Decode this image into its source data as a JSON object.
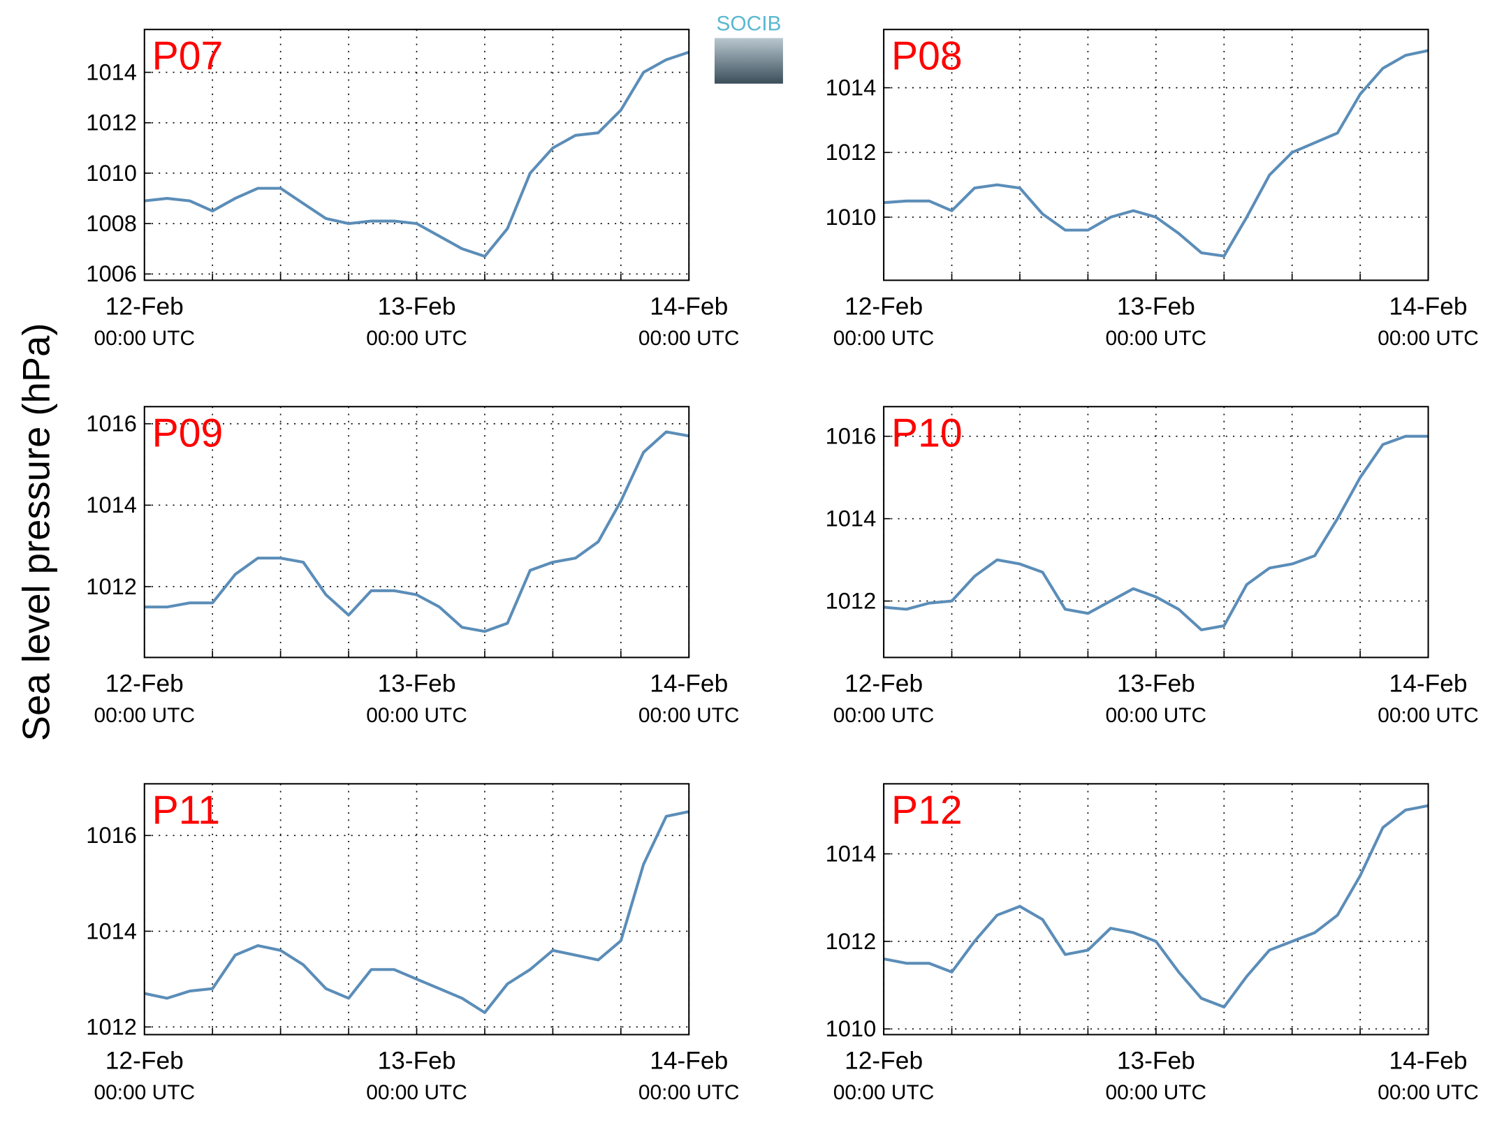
{
  "ylabel": "Sea level pressure (hPa)",
  "logo": "SOCIB",
  "chart_data": [
    {
      "type": "line",
      "title": "P07",
      "color": "#5b8db8",
      "grid": true,
      "x": [
        "12-Feb 00:00",
        "12-Feb 02:00",
        "12-Feb 04:00",
        "12-Feb 06:00",
        "12-Feb 08:00",
        "12-Feb 10:00",
        "12-Feb 12:00",
        "12-Feb 14:00",
        "12-Feb 16:00",
        "12-Feb 18:00",
        "12-Feb 20:00",
        "12-Feb 22:00",
        "13-Feb 00:00",
        "13-Feb 02:00",
        "13-Feb 04:00",
        "13-Feb 06:00",
        "13-Feb 08:00",
        "13-Feb 10:00",
        "13-Feb 12:00",
        "13-Feb 14:00",
        "13-Feb 16:00",
        "13-Feb 18:00",
        "13-Feb 20:00",
        "13-Feb 22:00",
        "14-Feb 00:00"
      ],
      "values": [
        1008.9,
        1009.0,
        1008.9,
        1008.5,
        1009.0,
        1009.4,
        1009.4,
        1008.8,
        1008.2,
        1008.0,
        1008.1,
        1008.1,
        1008.0,
        1007.5,
        1007.0,
        1006.7,
        1007.8,
        1010.0,
        1011.0,
        1011.5,
        1011.6,
        1012.5,
        1014.0,
        1014.5,
        1014.8
      ],
      "xlim": [
        "12-Feb 00:00",
        "14-Feb 00:00"
      ],
      "xticks": [
        {
          "value": "12-Feb 00:00",
          "label": "12-Feb",
          "sublabel": "00:00 UTC"
        },
        "12-Feb 06:00",
        "12-Feb 12:00",
        "12-Feb 18:00",
        {
          "value": "13-Feb 00:00",
          "label": "13-Feb",
          "sublabel": "00:00 UTC"
        },
        "13-Feb 06:00",
        "13-Feb 12:00",
        "13-Feb 18:00",
        {
          "value": "14-Feb 00:00",
          "label": "14-Feb",
          "sublabel": "00:00 UTC"
        }
      ],
      "ylim": [
        1005.75,
        1015.7
      ],
      "yticks": [
        1006,
        1008,
        1010,
        1012,
        1014
      ]
    },
    {
      "type": "line",
      "title": "P08",
      "color": "#5b8db8",
      "grid": true,
      "x": [
        "12-Feb 00:00",
        "12-Feb 02:00",
        "12-Feb 04:00",
        "12-Feb 06:00",
        "12-Feb 08:00",
        "12-Feb 10:00",
        "12-Feb 12:00",
        "12-Feb 14:00",
        "12-Feb 16:00",
        "12-Feb 18:00",
        "12-Feb 20:00",
        "12-Feb 22:00",
        "13-Feb 00:00",
        "13-Feb 02:00",
        "13-Feb 04:00",
        "13-Feb 06:00",
        "13-Feb 08:00",
        "13-Feb 10:00",
        "13-Feb 12:00",
        "13-Feb 14:00",
        "13-Feb 16:00",
        "13-Feb 18:00",
        "13-Feb 20:00",
        "13-Feb 22:00",
        "14-Feb 00:00"
      ],
      "values": [
        1010.45,
        1010.5,
        1010.5,
        1010.2,
        1010.9,
        1011.0,
        1010.9,
        1010.1,
        1009.6,
        1009.6,
        1010.0,
        1010.2,
        1010.0,
        1009.5,
        1008.9,
        1008.8,
        1010.0,
        1011.3,
        1012.0,
        1012.3,
        1012.6,
        1013.8,
        1014.6,
        1015.0,
        1015.15
      ],
      "xlim": [
        "12-Feb 00:00",
        "14-Feb 00:00"
      ],
      "xticks": [
        {
          "value": "12-Feb 00:00",
          "label": "12-Feb",
          "sublabel": "00:00 UTC"
        },
        "12-Feb 06:00",
        "12-Feb 12:00",
        "12-Feb 18:00",
        {
          "value": "13-Feb 00:00",
          "label": "13-Feb",
          "sublabel": "00:00 UTC"
        },
        "13-Feb 06:00",
        "13-Feb 12:00",
        "13-Feb 18:00",
        {
          "value": "14-Feb 00:00",
          "label": "14-Feb",
          "sublabel": "00:00 UTC"
        }
      ],
      "ylim": [
        1008.05,
        1015.8
      ],
      "yticks": [
        1010,
        1012,
        1014
      ]
    },
    {
      "type": "line",
      "title": "P09",
      "color": "#5b8db8",
      "grid": true,
      "x": [
        "12-Feb 00:00",
        "12-Feb 02:00",
        "12-Feb 04:00",
        "12-Feb 06:00",
        "12-Feb 08:00",
        "12-Feb 10:00",
        "12-Feb 12:00",
        "12-Feb 14:00",
        "12-Feb 16:00",
        "12-Feb 18:00",
        "12-Feb 20:00",
        "12-Feb 22:00",
        "13-Feb 00:00",
        "13-Feb 02:00",
        "13-Feb 04:00",
        "13-Feb 06:00",
        "13-Feb 08:00",
        "13-Feb 10:00",
        "13-Feb 12:00",
        "13-Feb 14:00",
        "13-Feb 16:00",
        "13-Feb 18:00",
        "13-Feb 20:00",
        "13-Feb 22:00",
        "14-Feb 00:00"
      ],
      "values": [
        1011.5,
        1011.5,
        1011.6,
        1011.6,
        1012.3,
        1012.7,
        1012.7,
        1012.6,
        1011.8,
        1011.3,
        1011.9,
        1011.9,
        1011.8,
        1011.5,
        1011.0,
        1010.9,
        1011.1,
        1012.4,
        1012.6,
        1012.7,
        1013.1,
        1014.1,
        1015.3,
        1015.8,
        1015.7
      ],
      "xlim": [
        "12-Feb 00:00",
        "14-Feb 00:00"
      ],
      "xticks": [
        {
          "value": "12-Feb 00:00",
          "label": "12-Feb",
          "sublabel": "00:00 UTC"
        },
        "12-Feb 06:00",
        "12-Feb 12:00",
        "12-Feb 18:00",
        {
          "value": "13-Feb 00:00",
          "label": "13-Feb",
          "sublabel": "00:00 UTC"
        },
        "13-Feb 06:00",
        "13-Feb 12:00",
        "13-Feb 18:00",
        {
          "value": "14-Feb 00:00",
          "label": "14-Feb",
          "sublabel": "00:00 UTC"
        }
      ],
      "ylim": [
        1010.26,
        1016.42
      ],
      "yticks": [
        1012,
        1014,
        1016
      ]
    },
    {
      "type": "line",
      "title": "P10",
      "color": "#5b8db8",
      "grid": true,
      "x": [
        "12-Feb 00:00",
        "12-Feb 02:00",
        "12-Feb 04:00",
        "12-Feb 06:00",
        "12-Feb 08:00",
        "12-Feb 10:00",
        "12-Feb 12:00",
        "12-Feb 14:00",
        "12-Feb 16:00",
        "12-Feb 18:00",
        "12-Feb 20:00",
        "12-Feb 22:00",
        "13-Feb 00:00",
        "13-Feb 02:00",
        "13-Feb 04:00",
        "13-Feb 06:00",
        "13-Feb 08:00",
        "13-Feb 10:00",
        "13-Feb 12:00",
        "13-Feb 14:00",
        "13-Feb 16:00",
        "13-Feb 18:00",
        "13-Feb 20:00",
        "13-Feb 22:00",
        "14-Feb 00:00"
      ],
      "values": [
        1011.85,
        1011.8,
        1011.95,
        1012.0,
        1012.6,
        1013.0,
        1012.9,
        1012.7,
        1011.8,
        1011.7,
        1012.0,
        1012.3,
        1012.1,
        1011.8,
        1011.3,
        1011.4,
        1012.4,
        1012.8,
        1012.9,
        1013.1,
        1014.0,
        1015.0,
        1015.8,
        1016.0,
        1016.0
      ],
      "xlim": [
        "12-Feb 00:00",
        "14-Feb 00:00"
      ],
      "xticks": [
        {
          "value": "12-Feb 00:00",
          "label": "12-Feb",
          "sublabel": "00:00 UTC"
        },
        "12-Feb 06:00",
        "12-Feb 12:00",
        "12-Feb 18:00",
        {
          "value": "13-Feb 00:00",
          "label": "13-Feb",
          "sublabel": "00:00 UTC"
        },
        "13-Feb 06:00",
        "13-Feb 12:00",
        "13-Feb 18:00",
        {
          "value": "14-Feb 00:00",
          "label": "14-Feb",
          "sublabel": "00:00 UTC"
        }
      ],
      "ylim": [
        1010.63,
        1016.72
      ],
      "yticks": [
        1012,
        1014,
        1016
      ]
    },
    {
      "type": "line",
      "title": "P11",
      "color": "#5b8db8",
      "grid": true,
      "x": [
        "12-Feb 00:00",
        "12-Feb 02:00",
        "12-Feb 04:00",
        "12-Feb 06:00",
        "12-Feb 08:00",
        "12-Feb 10:00",
        "12-Feb 12:00",
        "12-Feb 14:00",
        "12-Feb 16:00",
        "12-Feb 18:00",
        "12-Feb 20:00",
        "12-Feb 22:00",
        "13-Feb 00:00",
        "13-Feb 02:00",
        "13-Feb 04:00",
        "13-Feb 06:00",
        "13-Feb 08:00",
        "13-Feb 10:00",
        "13-Feb 12:00",
        "13-Feb 14:00",
        "13-Feb 16:00",
        "13-Feb 18:00",
        "13-Feb 20:00",
        "13-Feb 22:00",
        "14-Feb 00:00"
      ],
      "values": [
        1012.7,
        1012.6,
        1012.75,
        1012.8,
        1013.5,
        1013.7,
        1013.6,
        1013.3,
        1012.8,
        1012.6,
        1013.2,
        1013.2,
        1013.0,
        1012.8,
        1012.6,
        1012.3,
        1012.9,
        1013.2,
        1013.6,
        1013.5,
        1013.4,
        1013.8,
        1015.4,
        1016.4,
        1016.5
      ],
      "xlim": [
        "12-Feb 00:00",
        "14-Feb 00:00"
      ],
      "xticks": [
        {
          "value": "12-Feb 00:00",
          "label": "12-Feb",
          "sublabel": "00:00 UTC"
        },
        "12-Feb 06:00",
        "12-Feb 12:00",
        "12-Feb 18:00",
        {
          "value": "13-Feb 00:00",
          "label": "13-Feb",
          "sublabel": "00:00 UTC"
        },
        "13-Feb 06:00",
        "13-Feb 12:00",
        "13-Feb 18:00",
        {
          "value": "14-Feb 00:00",
          "label": "14-Feb",
          "sublabel": "00:00 UTC"
        }
      ],
      "ylim": [
        1011.84,
        1017.08
      ],
      "yticks": [
        1012,
        1014,
        1016
      ]
    },
    {
      "type": "line",
      "title": "P12",
      "color": "#5b8db8",
      "grid": true,
      "x": [
        "12-Feb 00:00",
        "12-Feb 02:00",
        "12-Feb 04:00",
        "12-Feb 06:00",
        "12-Feb 08:00",
        "12-Feb 10:00",
        "12-Feb 12:00",
        "12-Feb 14:00",
        "12-Feb 16:00",
        "12-Feb 18:00",
        "12-Feb 20:00",
        "12-Feb 22:00",
        "13-Feb 00:00",
        "13-Feb 02:00",
        "13-Feb 04:00",
        "13-Feb 06:00",
        "13-Feb 08:00",
        "13-Feb 10:00",
        "13-Feb 12:00",
        "13-Feb 14:00",
        "13-Feb 16:00",
        "13-Feb 18:00",
        "13-Feb 20:00",
        "13-Feb 22:00",
        "14-Feb 00:00"
      ],
      "values": [
        1011.6,
        1011.5,
        1011.5,
        1011.3,
        1012.0,
        1012.6,
        1012.8,
        1012.5,
        1011.7,
        1011.8,
        1012.3,
        1012.2,
        1012.0,
        1011.3,
        1010.7,
        1010.5,
        1011.2,
        1011.8,
        1012.0,
        1012.2,
        1012.6,
        1013.5,
        1014.6,
        1015.0,
        1015.1
      ],
      "xlim": [
        "12-Feb 00:00",
        "14-Feb 00:00"
      ],
      "xticks": [
        {
          "value": "12-Feb 00:00",
          "label": "12-Feb",
          "sublabel": "00:00 UTC"
        },
        "12-Feb 06:00",
        "12-Feb 12:00",
        "12-Feb 18:00",
        {
          "value": "13-Feb 00:00",
          "label": "13-Feb",
          "sublabel": "00:00 UTC"
        },
        "13-Feb 06:00",
        "13-Feb 12:00",
        "13-Feb 18:00",
        {
          "value": "14-Feb 00:00",
          "label": "14-Feb",
          "sublabel": "00:00 UTC"
        }
      ],
      "ylim": [
        1009.87,
        1015.6
      ],
      "yticks": [
        1010,
        1012,
        1014
      ]
    }
  ]
}
